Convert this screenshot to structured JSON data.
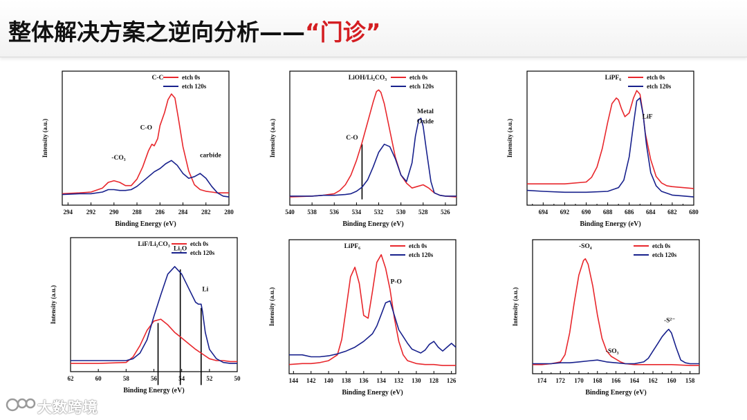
{
  "header": {
    "title": "整体解决方案之逆向分析——",
    "title_accent": "“门诊”"
  },
  "colors": {
    "etch_0s": "#e8262b",
    "etch_120s": "#17208c",
    "accent": "#d41e22"
  },
  "watermark": {
    "text": "大数跨境",
    "icon": "brand-logo-icon"
  },
  "chart_data": [
    {
      "type": "line",
      "xlabel": "Binding Energy (eV)",
      "ylabel": "Intensity (a.u.)",
      "xlim": [
        294.5,
        280
      ],
      "xticks": [
        "294",
        "292",
        "290",
        "288",
        "286",
        "284",
        "282",
        "280"
      ],
      "legend": {
        "placement": "top-right",
        "entries": [
          "etch 0s",
          "etch 120s"
        ]
      },
      "series": [
        {
          "name": "etch 0s",
          "x": [
            294.5,
            293,
            292,
            291,
            290.5,
            290,
            289.5,
            289,
            288.5,
            288,
            287.5,
            287,
            286.7,
            286.5,
            286.2,
            286,
            285.6,
            285.3,
            285,
            284.7,
            284.4,
            284,
            283.5,
            283,
            282.5,
            282,
            281.5,
            281,
            280.5,
            280
          ],
          "y": [
            7,
            8,
            9,
            14,
            21,
            23,
            21,
            17,
            17,
            25,
            40,
            60,
            68,
            66,
            75,
            91,
            107,
            123,
            130,
            125,
            100,
            65,
            35,
            18,
            12,
            10,
            9,
            8,
            8,
            8
          ]
        },
        {
          "name": "etch 120s",
          "x": [
            294.5,
            293,
            292,
            291,
            290.5,
            290,
            289.5,
            289,
            288.5,
            288,
            287.5,
            287,
            286.5,
            286,
            285.5,
            285,
            284.5,
            284,
            283.5,
            283,
            282.5,
            282,
            281.5,
            281,
            280.5,
            280
          ],
          "y": [
            6,
            7,
            7,
            9,
            12,
            12,
            11,
            11,
            12,
            16,
            22,
            28,
            34,
            38,
            44,
            48,
            42,
            32,
            26,
            28,
            32,
            26,
            16,
            8,
            4,
            3
          ]
        }
      ],
      "annotations": [
        {
          "text": "C-C",
          "x": 286.2,
          "y": 148
        },
        {
          "text": "C-O",
          "x": 287.2,
          "y": 86
        },
        {
          "text": "-CO₃",
          "x": 289.6,
          "y": 49
        },
        {
          "text": "carbide",
          "x": 281.6,
          "y": 52
        }
      ],
      "vlines": []
    },
    {
      "type": "line",
      "xlabel": "Binding Energy (eV)",
      "ylabel": "Intensity (a.u.)",
      "xlim": [
        540,
        525
      ],
      "xticks": [
        "540",
        "538",
        "536",
        "534",
        "532",
        "530",
        "528",
        "526"
      ],
      "legend": {
        "placement": "top-right",
        "entries": [
          "etch 0s",
          "etch 120s"
        ]
      },
      "series": [
        {
          "name": "etch 0s",
          "x": [
            540,
            538,
            537,
            536,
            535.5,
            535,
            534.5,
            534,
            533.5,
            533,
            532.5,
            532.2,
            532,
            531.8,
            531.5,
            531,
            530.5,
            530,
            529.5,
            529,
            528.5,
            528,
            527.5,
            527,
            526.5,
            526,
            525
          ],
          "y": [
            3,
            4,
            5,
            7,
            11,
            18,
            30,
            48,
            70,
            95,
            120,
            133,
            135,
            132,
            118,
            85,
            52,
            30,
            20,
            14,
            16,
            18,
            14,
            8,
            5,
            4,
            3
          ]
        },
        {
          "name": "etch 120s",
          "x": [
            540,
            538,
            537,
            536,
            535,
            534.5,
            534,
            533.5,
            533,
            532.5,
            532,
            531.5,
            531,
            530.5,
            530,
            529.5,
            529,
            528.7,
            528.4,
            528.2,
            528,
            527.7,
            527.3,
            527,
            526.5,
            526,
            525
          ],
          "y": [
            4,
            4,
            5,
            5,
            6,
            7,
            10,
            15,
            24,
            40,
            58,
            68,
            65,
            50,
            30,
            22,
            45,
            78,
            98,
            100,
            90,
            60,
            22,
            8,
            5,
            4,
            4
          ]
        }
      ],
      "annotations": [
        {
          "text": "LiOH/Li₂CO₃",
          "x": 533,
          "y": 148
        },
        {
          "text": "Metal",
          "x": 527.8,
          "y": 106
        },
        {
          "text": "Oxide",
          "x": 527.8,
          "y": 94
        },
        {
          "text": "C-O",
          "x": 534.4,
          "y": 74
        }
      ],
      "vlines": [
        {
          "x": 533.5,
          "from": 0,
          "to": 68
        }
      ]
    },
    {
      "type": "line",
      "xlabel": "Binding Energy (eV)",
      "ylabel": "Intensity (a.u.)",
      "xlim": [
        695.5,
        680
      ],
      "xticks": [
        "694",
        "692",
        "690",
        "688",
        "686",
        "684",
        "682",
        "680"
      ],
      "legend": {
        "placement": "top-right",
        "entries": [
          "etch 0s",
          "etch 120s"
        ]
      },
      "series": [
        {
          "name": "etch 0s",
          "x": [
            695.5,
            694,
            692,
            690,
            689.5,
            689,
            688.5,
            688,
            687.6,
            687.2,
            687,
            686.7,
            686.4,
            686,
            685.6,
            685.3,
            685,
            684.7,
            684.5,
            684,
            683.5,
            683,
            682.5,
            682,
            681,
            680
          ],
          "y": [
            26,
            26,
            26,
            28,
            33,
            44,
            64,
            92,
            112,
            118,
            116,
            106,
            98,
            102,
            118,
            126,
            122,
            100,
            80,
            52,
            34,
            27,
            24,
            23,
            22,
            21
          ]
        },
        {
          "name": "etch 120s",
          "x": [
            695.5,
            694,
            692,
            690,
            688,
            687,
            686.5,
            686,
            685.6,
            685.3,
            685,
            684.7,
            684.4,
            684,
            683.5,
            683,
            682,
            681,
            680
          ],
          "y": [
            19,
            18,
            17,
            17,
            18,
            22,
            30,
            55,
            90,
            115,
            118,
            100,
            68,
            38,
            24,
            18,
            14,
            13,
            12
          ]
        }
      ],
      "annotations": [
        {
          "text": "LiPF₆",
          "x": 687.5,
          "y": 138
        },
        {
          "text": "LiF",
          "x": 684.3,
          "y": 96
        }
      ],
      "vlines": []
    },
    {
      "type": "line",
      "xlabel": "Binding Energy (eV)",
      "ylabel": "Intensity (a.u.)",
      "xlim": [
        62,
        50
      ],
      "xticks": [
        "62",
        "60",
        "58",
        "56",
        "54",
        "52",
        "50"
      ],
      "legend": {
        "placement": "top-right",
        "entries": [
          "etch 0s",
          "etch 120s"
        ]
      },
      "series": [
        {
          "name": "etch 0s",
          "x": [
            62,
            60,
            58,
            57.5,
            57,
            56.5,
            56,
            55.5,
            55,
            54.5,
            54,
            53.5,
            53,
            52.5,
            52,
            51.5,
            51,
            50.5,
            50
          ],
          "y": [
            5,
            5,
            6,
            12,
            24,
            40,
            50,
            52,
            46,
            38,
            32,
            26,
            20,
            15,
            10,
            8,
            8,
            7,
            7
          ]
        },
        {
          "name": "etch 120s",
          "x": [
            62,
            60,
            58,
            57.5,
            57,
            56.5,
            56,
            55.5,
            55,
            54.5,
            54,
            53.5,
            53,
            52.8,
            52.6,
            52.5,
            52.3,
            52,
            51.5,
            51,
            50.5,
            50
          ],
          "y": [
            8,
            8,
            8,
            10,
            16,
            30,
            55,
            78,
            100,
            108,
            100,
            85,
            70,
            68,
            68,
            60,
            38,
            20,
            10,
            6,
            5,
            5
          ]
        }
      ],
      "annotations": [
        {
          "text": "LiF/Li₂CO₃",
          "x": 56,
          "y": 130
        },
        {
          "text": "Li₂O",
          "x": 54.1,
          "y": 125
        },
        {
          "text": "Li",
          "x": 52.3,
          "y": 82
        }
      ],
      "vlines": [
        {
          "x": 55.7,
          "from": -18,
          "to": 48
        },
        {
          "x": 54.1,
          "from": -18,
          "to": 105
        },
        {
          "x": 52.6,
          "from": -18,
          "to": 64
        }
      ]
    },
    {
      "type": "line",
      "xlabel": "Binding Energy (eV)",
      "ylabel": "Intensity (a.u.)",
      "xlim": [
        144.5,
        125.5
      ],
      "xticks": [
        "144",
        "142",
        "140",
        "138",
        "136",
        "134",
        "132",
        "130",
        "128",
        "126"
      ],
      "legend": {
        "placement": "top-right",
        "entries": [
          "etch 0s",
          "etch 120s"
        ]
      },
      "series": [
        {
          "name": "etch 0s",
          "x": [
            144.5,
            143,
            142,
            141,
            140,
            139,
            138.5,
            138,
            137.5,
            137,
            136.5,
            136,
            135.5,
            135,
            134.5,
            134,
            133.5,
            133,
            132.5,
            132,
            131.5,
            131,
            130,
            129,
            128,
            127,
            126,
            125.5
          ],
          "y": [
            4,
            5,
            5,
            6,
            8,
            14,
            30,
            62,
            95,
            105,
            88,
            55,
            52,
            80,
            110,
            118,
            104,
            82,
            52,
            28,
            14,
            8,
            5,
            4,
            4,
            3,
            3,
            3
          ]
        },
        {
          "name": "etch 120s",
          "x": [
            144.5,
            143,
            142,
            141,
            140,
            139,
            138,
            137,
            136,
            135,
            134.5,
            134,
            133.5,
            133,
            132.5,
            132,
            131.5,
            131,
            130.5,
            130,
            129.5,
            129,
            128.5,
            128,
            127.5,
            127,
            126.5,
            126,
            125.5
          ],
          "y": [
            14,
            14,
            12,
            12,
            13,
            15,
            18,
            22,
            28,
            36,
            44,
            56,
            68,
            70,
            55,
            40,
            33,
            26,
            20,
            18,
            16,
            19,
            25,
            28,
            22,
            18,
            22,
            26,
            22
          ]
        }
      ],
      "annotations": [
        {
          "text": "LiPF₆",
          "x": 137.3,
          "y": 125
        },
        {
          "text": "P-O",
          "x": 132.3,
          "y": 88
        }
      ],
      "vlines": []
    },
    {
      "type": "line",
      "xlabel": "Binding Energy (eV)",
      "ylabel": "Intensity (a.u.)",
      "xlim": [
        175,
        157
      ],
      "xticks": [
        "174",
        "172",
        "170",
        "168",
        "166",
        "164",
        "162",
        "160",
        "158"
      ],
      "legend": {
        "placement": "top-right",
        "entries": [
          "etch 0s",
          "etch 120s"
        ]
      },
      "series": [
        {
          "name": "etch 0s",
          "x": [
            175,
            174,
            173,
            172,
            171.5,
            171,
            170.5,
            170,
            169.5,
            169.3,
            169,
            168.5,
            168,
            167.5,
            167,
            166.5,
            166,
            165.5,
            165,
            164,
            162,
            160,
            158,
            157
          ],
          "y": [
            3,
            3,
            4,
            6,
            14,
            38,
            72,
            102,
            118,
            120,
            114,
            90,
            58,
            32,
            18,
            12,
            9,
            6,
            4,
            3,
            3,
            3,
            2,
            2
          ]
        },
        {
          "name": "etch 120s",
          "x": [
            175,
            174,
            173,
            172,
            171,
            170,
            169,
            168,
            167,
            166,
            165,
            164,
            163,
            162.5,
            162,
            161.5,
            161,
            160.5,
            160.3,
            160,
            159.5,
            159,
            158.5,
            158,
            157
          ],
          "y": [
            4,
            4,
            4,
            5,
            5,
            6,
            7,
            8,
            6,
            5,
            4,
            4,
            6,
            10,
            18,
            26,
            34,
            40,
            42,
            38,
            22,
            8,
            5,
            4,
            4
          ]
        }
      ],
      "annotations": [
        {
          "text": "-SO₄",
          "x": 169.3,
          "y": 132
        },
        {
          "text": "-SO₃",
          "x": 166.4,
          "y": 16
        },
        {
          "text": "-S²⁻",
          "x": 160.2,
          "y": 50
        }
      ],
      "vlines": []
    }
  ]
}
